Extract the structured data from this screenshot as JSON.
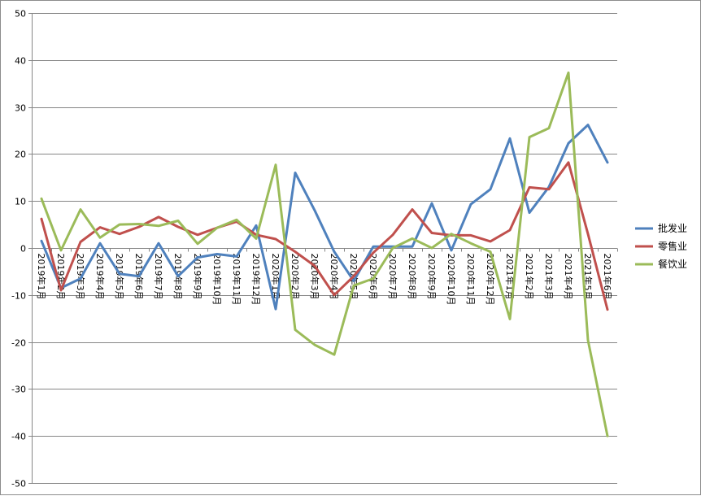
{
  "chart_data": {
    "type": "line",
    "title": "",
    "xlabel": "",
    "ylabel": "",
    "ylim": [
      -50,
      50
    ],
    "yticks": [
      50,
      40,
      30,
      20,
      10,
      0,
      -10,
      -20,
      -30,
      -40,
      -50
    ],
    "grid": true,
    "legend_position": "right",
    "categories": [
      "2019年1月",
      "2019年2月",
      "2019年3月",
      "2019年4月",
      "2019年5月",
      "2019年6月",
      "2019年7月",
      "2019年8月",
      "2019年9月",
      "2019年10月",
      "2019年11月",
      "2019年12月",
      "2020年1月",
      "2020年2月",
      "2020年3月",
      "2020年4月",
      "2020年5月",
      "2020年6月",
      "2020年7月",
      "2020年8月",
      "2020年9月",
      "2020年10月",
      "2020年11月",
      "2020年12月",
      "2021年1月",
      "2021年2月",
      "2021年3月",
      "2021年4月",
      "2021年5月",
      "2021年6月"
    ],
    "series": [
      {
        "name": "批发业",
        "color": "#4f81bd",
        "values": [
          1.5,
          -8.5,
          -6.5,
          1.0,
          -5.5,
          -6.0,
          1.0,
          -6.0,
          -2.0,
          -1.3,
          -1.8,
          4.8,
          -13.0,
          16.0,
          8.0,
          -0.8,
          -7.0,
          0.3,
          0.3,
          0.3,
          9.5,
          -0.5,
          9.3,
          12.5,
          23.3,
          7.5,
          13.0,
          22.3,
          26.2,
          18.2
        ]
      },
      {
        "name": "零售业",
        "color": "#c0504d",
        "values": [
          6.2,
          -9.0,
          1.3,
          4.4,
          3.0,
          4.5,
          6.6,
          4.5,
          2.8,
          4.3,
          5.6,
          2.8,
          1.9,
          -0.8,
          -3.8,
          -10.0,
          -6.0,
          -1.0,
          2.8,
          8.2,
          3.2,
          2.7,
          2.7,
          1.4,
          3.8,
          12.9,
          12.5,
          18.2,
          3.0,
          -13.1
        ]
      },
      {
        "name": "餐饮业",
        "color": "#9bbb59",
        "values": [
          10.5,
          -0.5,
          8.2,
          2.2,
          5.0,
          5.1,
          4.7,
          5.8,
          0.9,
          4.3,
          6.0,
          2.0,
          17.7,
          -17.4,
          -20.6,
          -22.7,
          -8.0,
          -6.5,
          0.0,
          2.0,
          0.0,
          3.0,
          1.0,
          -0.8,
          -15.1,
          23.6,
          25.5,
          37.3,
          -19.6,
          -40.0
        ]
      }
    ]
  }
}
